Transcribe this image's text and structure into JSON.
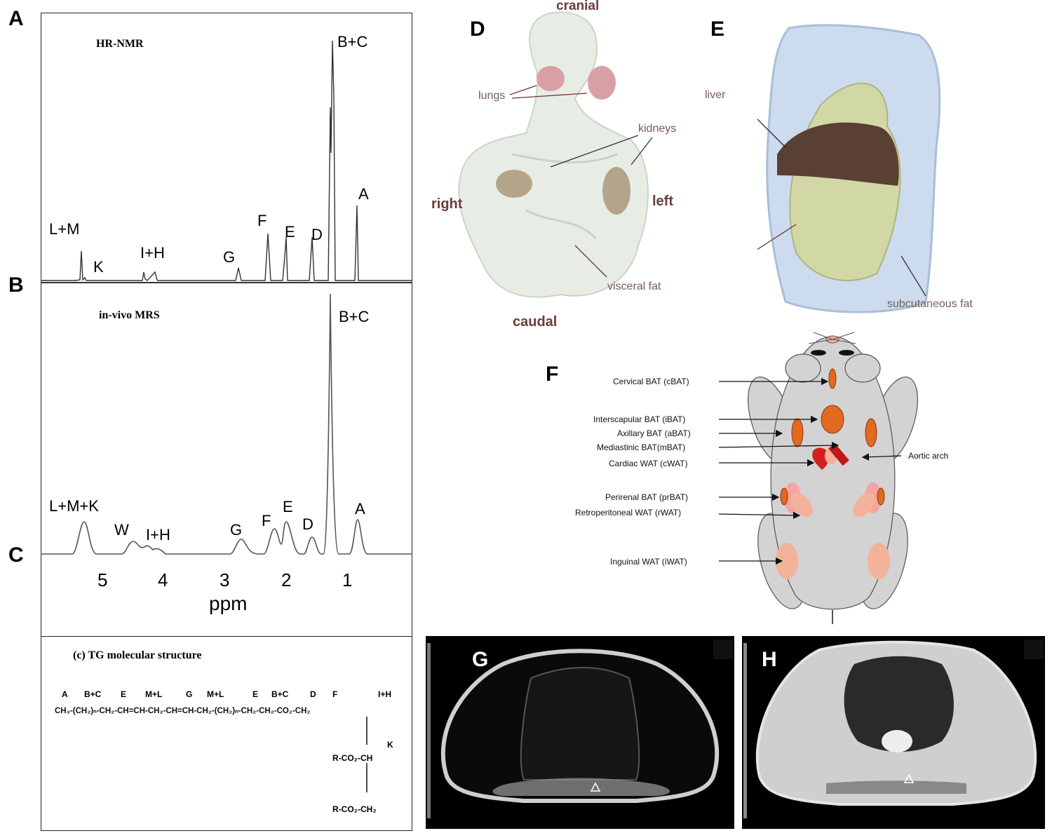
{
  "panels": {
    "A": "A",
    "B": "B",
    "C": "C",
    "D": "D",
    "E": "E",
    "F": "F",
    "G": "G",
    "H": "H"
  },
  "spectrum_a": {
    "title": "HR-NMR",
    "peaks": [
      "L+M",
      "K",
      "I+H",
      "G",
      "F",
      "E",
      "D",
      "B+C",
      "A"
    ]
  },
  "spectrum_b": {
    "title": "in-vivo MRS",
    "peaks": [
      "L+M+K",
      "W",
      "I+H",
      "G",
      "F",
      "E",
      "D",
      "B+C",
      "A"
    ]
  },
  "axis": {
    "ticks": [
      "5",
      "4",
      "3",
      "2",
      "1"
    ],
    "label": "ppm"
  },
  "structure": {
    "title": "(c) TG molecular structure",
    "labels": [
      "A",
      "B+C",
      "E",
      "M+L",
      "G",
      "M+L",
      "E",
      "B+C",
      "D",
      "F",
      "I+H"
    ],
    "k_label": "K",
    "r1": "R-CO₂-CH",
    "r2": "R-CO₂-CH₂"
  },
  "panel_d": {
    "cranial": "cranial",
    "caudal": "caudal",
    "right": "right",
    "left": "left",
    "lungs": "lungs",
    "kidneys": "kidneys",
    "visceral_fat": "visceral fat"
  },
  "panel_e": {
    "liver": "liver",
    "subcutaneous_fat": "subcutaneous fat"
  },
  "panel_f": {
    "labels": [
      "Cervical BAT (cBAT)",
      "Interscapular BAT (iBAT)",
      "Axillary BAT (aBAT)",
      "Mediastinic BAT(mBAT)",
      "Cardiac WAT (cWAT)",
      "Perirenal BAT (prBAT)",
      "Retroperitoneal WAT (rWAT)",
      "Inguinal WAT (iWAT)"
    ],
    "aortic_arch": "Aortic arch"
  },
  "colors": {
    "bat": "#e2691f",
    "wat": "#f5b29a",
    "mouse": "#d3d3d3",
    "heart": "#d42020",
    "liver": "#5a3f33",
    "visceral": "#cfd49a",
    "subcutaneous": "#b7cde6"
  }
}
